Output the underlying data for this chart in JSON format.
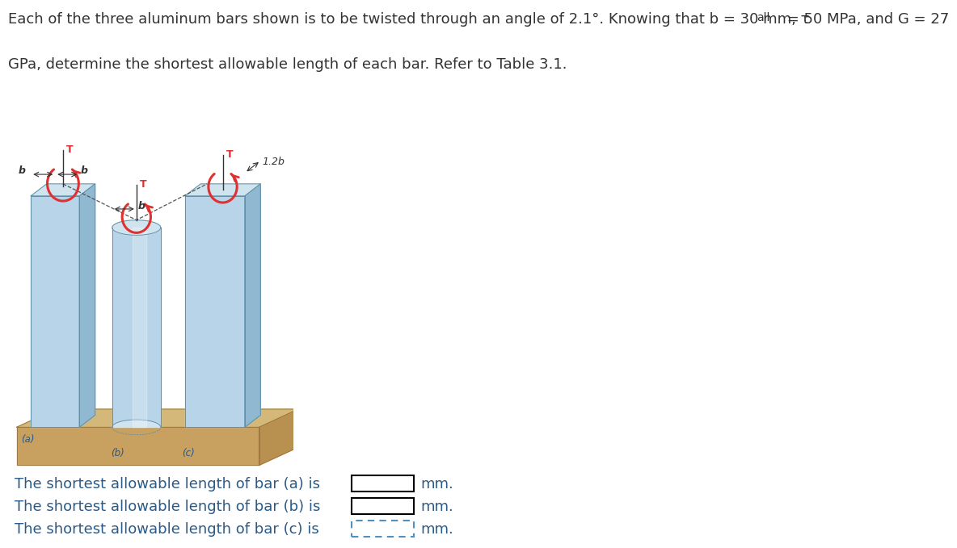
{
  "bg_color": "#d8e8f0",
  "bar_face_color": "#b8d4e8",
  "bar_side_color": "#90b8d0",
  "bar_top_color": "#d0e4f0",
  "base_top_color": "#d4b87a",
  "base_front_color": "#c8a060",
  "base_right_color": "#b89050",
  "base_edge_color": "#a07840",
  "bar_edge_color": "#6090a8",
  "arrow_color": "#e03030",
  "dim_color": "#333333",
  "text_color": "#2a5a88",
  "title_color": "#333333",
  "box_solid_ec": "#000000",
  "box_dashed_ec": "#5090c0",
  "label_a": "(a)",
  "label_b_bar": "(b)",
  "label_c": "(c)",
  "label_T": "T",
  "label_b_dim": "b",
  "label_1p2b": "1.2b",
  "line1": "The shortest allowable length of bar (a) is",
  "line2": "The shortest allowable length of bar (b) is",
  "line3": "The shortest allowable length of bar (c) is",
  "unit": "mm.",
  "title_line1": "Each of the three aluminum bars shown is to be twisted through an angle of 2.1°. Knowing that b = 30 mm, τ",
  "title_sub": "all",
  "title_line1b": " = 50 MPa, and G = 27",
  "title_line2": "GPa, determine the shortest allowable length of each bar. Refer to Table 3.1."
}
